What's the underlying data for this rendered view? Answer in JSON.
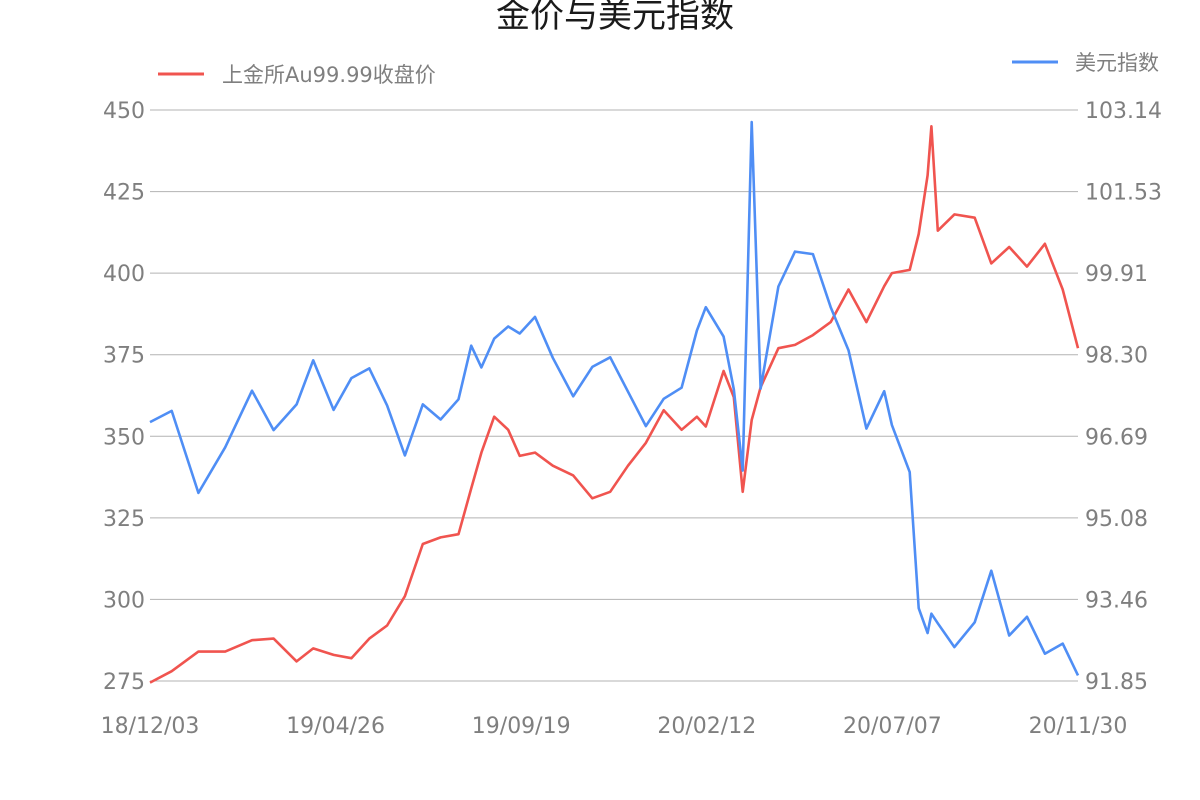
{
  "chart_data": {
    "type": "line",
    "title": "金价与美元指数",
    "grid": true,
    "legend_placement": "top",
    "x_tick_labels": [
      "18/12/03",
      "19/04/26",
      "19/09/19",
      "20/02/12",
      "20/07/07",
      "20/11/30"
    ],
    "y_left": {
      "ylim": [
        275,
        450
      ],
      "tick_labels": [
        "275",
        "300",
        "325",
        "350",
        "375",
        "400",
        "425",
        "450"
      ]
    },
    "y_right": {
      "ylim": [
        91.85,
        103.14
      ],
      "tick_labels": [
        "91.85",
        "93.46",
        "95.08",
        "96.69",
        "98.30",
        "99.91",
        "101.53",
        "103.14"
      ]
    },
    "series": [
      {
        "name": "上金所Au99.99收盘价",
        "axis": "left",
        "color": "#f0544f",
        "x": [
          "18/12/03",
          "18/12/20",
          "19/01/10",
          "19/01/31",
          "19/02/21",
          "19/03/10",
          "19/03/28",
          "19/04/10",
          "19/04/26",
          "19/05/10",
          "19/05/24",
          "19/06/07",
          "19/06/21",
          "19/07/05",
          "19/07/19",
          "19/08/02",
          "19/08/12",
          "19/08/20",
          "19/08/30",
          "19/09/10",
          "19/09/19",
          "19/10/01",
          "19/10/15",
          "19/10/31",
          "19/11/15",
          "19/11/29",
          "19/12/13",
          "19/12/27",
          "20/01/10",
          "20/01/24",
          "20/02/05",
          "20/02/12",
          "20/02/26",
          "20/03/05",
          "20/03/12",
          "20/03/19",
          "20/03/26",
          "20/04/09",
          "20/04/22",
          "20/05/06",
          "20/05/20",
          "20/06/03",
          "20/06/17",
          "20/07/01",
          "20/07/07",
          "20/07/21",
          "20/07/28",
          "20/08/04",
          "20/08/07",
          "20/08/12",
          "20/08/25",
          "20/09/10",
          "20/09/23",
          "20/10/07",
          "20/10/21",
          "20/11/04",
          "20/11/18",
          "20/11/30"
        ],
        "values": [
          274.5,
          278,
          284,
          284,
          287.5,
          288,
          281,
          285,
          283,
          282,
          288,
          292,
          301,
          317,
          319,
          320,
          334,
          345,
          356,
          352,
          344,
          345,
          341,
          338,
          331,
          333,
          341,
          348,
          358,
          352,
          356,
          353,
          370,
          362,
          333,
          355,
          365,
          377,
          378,
          381,
          385,
          395,
          385,
          396,
          400,
          401,
          412,
          430,
          445,
          413,
          418,
          417,
          403,
          408,
          402,
          409,
          395,
          377
        ]
      },
      {
        "name": "美元指数",
        "axis": "right",
        "color": "#4f8ef5",
        "x": [
          "18/12/03",
          "18/12/20",
          "19/01/10",
          "19/01/31",
          "19/02/21",
          "19/03/10",
          "19/03/28",
          "19/04/10",
          "19/04/26",
          "19/05/10",
          "19/05/24",
          "19/06/07",
          "19/06/21",
          "19/07/05",
          "19/07/19",
          "19/08/02",
          "19/08/12",
          "19/08/20",
          "19/08/30",
          "19/09/10",
          "19/09/19",
          "19/10/01",
          "19/10/15",
          "19/10/31",
          "19/11/15",
          "19/11/29",
          "19/12/13",
          "19/12/27",
          "20/01/10",
          "20/01/24",
          "20/02/05",
          "20/02/12",
          "20/02/26",
          "20/03/05",
          "20/03/12",
          "20/03/19",
          "20/03/26",
          "20/04/09",
          "20/04/22",
          "20/05/06",
          "20/05/20",
          "20/06/03",
          "20/06/17",
          "20/07/01",
          "20/07/07",
          "20/07/21",
          "20/07/28",
          "20/08/04",
          "20/08/07",
          "20/08/12",
          "20/08/25",
          "20/09/10",
          "20/09/23",
          "20/10/07",
          "20/10/21",
          "20/11/04",
          "20/11/18",
          "20/11/30"
        ],
        "values": [
          96.97,
          97.19,
          95.57,
          96.47,
          97.59,
          96.81,
          97.32,
          98.19,
          97.21,
          97.84,
          98.03,
          97.3,
          96.31,
          97.32,
          97.02,
          97.42,
          98.48,
          98.05,
          98.62,
          98.86,
          98.72,
          99.05,
          98.24,
          97.48,
          98.06,
          98.25,
          97.57,
          96.89,
          97.43,
          97.65,
          98.78,
          99.24,
          98.66,
          97.62,
          96.01,
          102.9,
          97.63,
          99.65,
          100.34,
          100.29,
          99.24,
          98.39,
          96.84,
          97.58,
          96.91,
          95.98,
          93.29,
          92.8,
          93.18,
          92.99,
          92.52,
          93.01,
          94.03,
          92.75,
          93.12,
          92.39,
          92.59,
          91.96
        ]
      }
    ]
  }
}
